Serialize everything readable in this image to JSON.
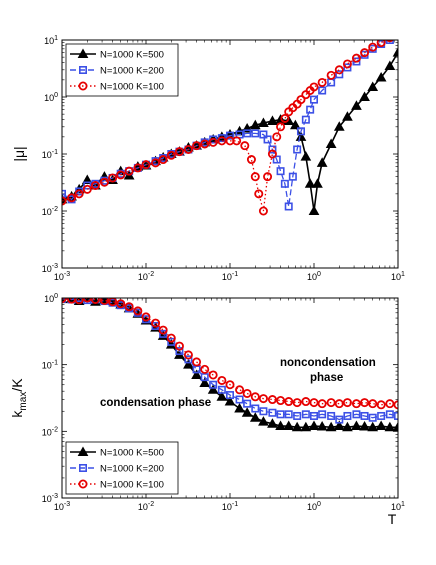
{
  "chart_data": [
    {
      "type": "line",
      "ylabel": "|μ|",
      "xlabel": "",
      "xscale": "log",
      "yscale": "log",
      "xlim": [
        0.001,
        10
      ],
      "ylim": [
        0.001,
        10
      ],
      "x_ticks": [
        "10",
        "10",
        "10",
        "10",
        "10"
      ],
      "x_tick_exponents": [
        "-3",
        "-2",
        "-1",
        "0",
        "1"
      ],
      "y_ticks": [
        "10",
        "10",
        "10",
        "10",
        "10"
      ],
      "y_tick_exponents": [
        "-3",
        "-2",
        "-1",
        "0",
        "1"
      ],
      "legend_position": "top-left",
      "series": [
        {
          "name": "N=1000 K=500",
          "color": "#000000",
          "marker": "triangle",
          "line": "solid",
          "x": [
            0.001,
            0.0013,
            0.0016,
            0.002,
            0.0025,
            0.0032,
            0.004,
            0.005,
            0.0063,
            0.008,
            0.01,
            0.013,
            0.016,
            0.02,
            0.025,
            0.032,
            0.04,
            0.05,
            0.063,
            0.08,
            0.1,
            0.13,
            0.16,
            0.2,
            0.25,
            0.32,
            0.4,
            0.5,
            0.6,
            0.7,
            0.8,
            0.9,
            1.0,
            1.1,
            1.25,
            1.6,
            2.0,
            2.5,
            3.2,
            4.0,
            5.0,
            6.3,
            8.0,
            10.0
          ],
          "values": [
            0.016,
            0.018,
            0.024,
            0.035,
            0.028,
            0.04,
            0.035,
            0.05,
            0.042,
            0.06,
            0.063,
            0.075,
            0.087,
            0.1,
            0.11,
            0.13,
            0.14,
            0.16,
            0.18,
            0.2,
            0.22,
            0.25,
            0.28,
            0.32,
            0.35,
            0.38,
            0.4,
            0.38,
            0.32,
            0.2,
            0.09,
            0.03,
            0.01,
            0.03,
            0.07,
            0.15,
            0.3,
            0.45,
            0.7,
            1.0,
            1.5,
            2.2,
            3.5,
            6.0
          ]
        },
        {
          "name": "N=1000 K=200",
          "color": "#3c50e6",
          "marker": "square",
          "line": "dashed",
          "x": [
            0.001,
            0.0013,
            0.0016,
            0.002,
            0.0025,
            0.0032,
            0.004,
            0.005,
            0.0063,
            0.008,
            0.01,
            0.013,
            0.016,
            0.02,
            0.025,
            0.032,
            0.04,
            0.05,
            0.063,
            0.08,
            0.1,
            0.13,
            0.16,
            0.2,
            0.25,
            0.28,
            0.32,
            0.36,
            0.4,
            0.45,
            0.5,
            0.56,
            0.63,
            0.7,
            0.8,
            0.9,
            1.0,
            1.25,
            1.6,
            2.0,
            2.5,
            3.2,
            4.0,
            5.0,
            6.3,
            8.0,
            10.0
          ],
          "values": [
            0.02,
            0.016,
            0.022,
            0.028,
            0.03,
            0.034,
            0.038,
            0.045,
            0.05,
            0.057,
            0.065,
            0.075,
            0.085,
            0.1,
            0.11,
            0.12,
            0.14,
            0.16,
            0.18,
            0.19,
            0.21,
            0.22,
            0.23,
            0.23,
            0.22,
            0.18,
            0.12,
            0.08,
            0.05,
            0.03,
            0.012,
            0.04,
            0.12,
            0.25,
            0.4,
            0.6,
            0.9,
            1.3,
            1.8,
            2.5,
            3.3,
            4.2,
            5.5,
            7.0,
            8.5,
            10.0,
            12.0
          ]
        },
        {
          "name": "N=1000 K=100",
          "color": "#e60000",
          "marker": "circle",
          "line": "dotted",
          "x": [
            0.001,
            0.0013,
            0.0016,
            0.002,
            0.0025,
            0.0032,
            0.004,
            0.005,
            0.0063,
            0.008,
            0.01,
            0.013,
            0.016,
            0.02,
            0.025,
            0.032,
            0.04,
            0.05,
            0.063,
            0.08,
            0.1,
            0.12,
            0.15,
            0.18,
            0.2,
            0.22,
            0.25,
            0.28,
            0.32,
            0.36,
            0.4,
            0.45,
            0.5,
            0.56,
            0.63,
            0.7,
            0.8,
            0.9,
            1.0,
            1.25,
            1.6,
            2.0,
            2.5,
            3.2,
            4.0,
            5.0,
            6.3,
            8.0,
            10.0
          ],
          "values": [
            0.015,
            0.017,
            0.02,
            0.024,
            0.028,
            0.032,
            0.038,
            0.043,
            0.05,
            0.057,
            0.065,
            0.07,
            0.08,
            0.095,
            0.11,
            0.12,
            0.14,
            0.15,
            0.16,
            0.17,
            0.17,
            0.17,
            0.14,
            0.08,
            0.04,
            0.02,
            0.01,
            0.04,
            0.1,
            0.2,
            0.3,
            0.42,
            0.55,
            0.65,
            0.75,
            0.9,
            1.1,
            1.3,
            1.5,
            1.8,
            2.4,
            3.0,
            3.8,
            4.8,
            6.0,
            7.5,
            9.0,
            11.0,
            13.0
          ]
        }
      ]
    },
    {
      "type": "line",
      "ylabel": "k",
      "ylabel_sub": "max",
      "ylabel_suffix": "/K",
      "xlabel": "T",
      "xscale": "log",
      "yscale": "log",
      "xlim": [
        0.001,
        10
      ],
      "ylim": [
        0.001,
        1
      ],
      "x_ticks": [
        "10",
        "10",
        "10",
        "10",
        "10"
      ],
      "x_tick_exponents": [
        "-3",
        "-2",
        "-1",
        "0",
        "1"
      ],
      "y_ticks": [
        "10",
        "10",
        "10",
        "10"
      ],
      "y_tick_exponents": [
        "-3",
        "-2",
        "-1",
        "0"
      ],
      "legend_position": "bottom-left",
      "annotations": [
        "condensation phase",
        "noncondensation",
        "phase"
      ],
      "series": [
        {
          "name": "N=1000 K=500",
          "color": "#000000",
          "marker": "triangle",
          "line": "solid",
          "x": [
            0.001,
            0.0013,
            0.0016,
            0.002,
            0.0025,
            0.0032,
            0.004,
            0.005,
            0.0063,
            0.008,
            0.01,
            0.013,
            0.016,
            0.02,
            0.025,
            0.032,
            0.04,
            0.05,
            0.063,
            0.08,
            0.1,
            0.13,
            0.16,
            0.2,
            0.25,
            0.32,
            0.4,
            0.5,
            0.63,
            0.8,
            1.0,
            1.25,
            1.6,
            2.0,
            2.5,
            3.2,
            4.0,
            5.0,
            6.3,
            8.0,
            10.0
          ],
          "values": [
            0.96,
            0.98,
            0.9,
            1.0,
            0.88,
            0.94,
            0.9,
            0.8,
            0.7,
            0.58,
            0.46,
            0.36,
            0.27,
            0.2,
            0.14,
            0.1,
            0.07,
            0.053,
            0.042,
            0.033,
            0.028,
            0.022,
            0.019,
            0.016,
            0.014,
            0.013,
            0.012,
            0.012,
            0.0115,
            0.0115,
            0.012,
            0.0118,
            0.0115,
            0.012,
            0.0115,
            0.012,
            0.0118,
            0.0115,
            0.012,
            0.0115,
            0.0115
          ]
        },
        {
          "name": "N=1000 K=200",
          "color": "#3c50e6",
          "marker": "square",
          "line": "dashed",
          "x": [
            0.001,
            0.0013,
            0.0016,
            0.002,
            0.0025,
            0.0032,
            0.004,
            0.005,
            0.0063,
            0.008,
            0.01,
            0.013,
            0.016,
            0.02,
            0.025,
            0.032,
            0.04,
            0.05,
            0.063,
            0.08,
            0.1,
            0.13,
            0.16,
            0.2,
            0.25,
            0.32,
            0.4,
            0.5,
            0.63,
            0.8,
            1.0,
            1.25,
            1.6,
            2.0,
            2.5,
            3.2,
            4.0,
            5.0,
            6.3,
            8.0,
            10.0
          ],
          "values": [
            0.97,
            0.95,
            1.0,
            0.93,
            0.95,
            0.9,
            0.85,
            0.78,
            0.7,
            0.6,
            0.48,
            0.38,
            0.29,
            0.22,
            0.16,
            0.12,
            0.085,
            0.065,
            0.05,
            0.042,
            0.035,
            0.03,
            0.026,
            0.022,
            0.02,
            0.019,
            0.018,
            0.018,
            0.017,
            0.018,
            0.017,
            0.018,
            0.017,
            0.015,
            0.017,
            0.018,
            0.017,
            0.016,
            0.017,
            0.018,
            0.017
          ]
        },
        {
          "name": "N=1000 K=100",
          "color": "#e60000",
          "marker": "circle",
          "line": "dotted",
          "x": [
            0.001,
            0.0013,
            0.0016,
            0.002,
            0.0025,
            0.0032,
            0.004,
            0.005,
            0.0063,
            0.008,
            0.01,
            0.013,
            0.016,
            0.02,
            0.025,
            0.032,
            0.04,
            0.05,
            0.063,
            0.08,
            0.1,
            0.13,
            0.16,
            0.2,
            0.25,
            0.32,
            0.4,
            0.5,
            0.63,
            0.8,
            1.0,
            1.25,
            1.6,
            2.0,
            2.5,
            3.2,
            4.0,
            5.0,
            6.3,
            8.0,
            10.0
          ],
          "values": [
            0.98,
            0.96,
            0.94,
            1.0,
            0.95,
            0.92,
            0.88,
            0.82,
            0.74,
            0.64,
            0.52,
            0.42,
            0.33,
            0.25,
            0.19,
            0.14,
            0.11,
            0.085,
            0.07,
            0.058,
            0.05,
            0.042,
            0.037,
            0.033,
            0.031,
            0.03,
            0.029,
            0.028,
            0.027,
            0.028,
            0.027,
            0.026,
            0.027,
            0.026,
            0.027,
            0.026,
            0.027,
            0.026,
            0.025,
            0.026,
            0.025
          ]
        }
      ]
    }
  ]
}
